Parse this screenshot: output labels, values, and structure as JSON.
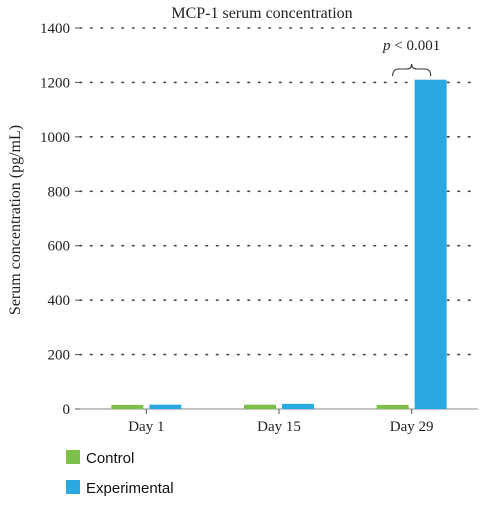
{
  "chart_data": {
    "type": "bar",
    "title": "MCP-1 serum concentration",
    "xlabel": "",
    "ylabel": "Serum concentration (pg/mL)",
    "categories": [
      "Day 1",
      "Day 15",
      "Day 29"
    ],
    "series": [
      {
        "name": "Control",
        "values": [
          15,
          16,
          15
        ],
        "color": "#7cc04a"
      },
      {
        "name": "Experimental",
        "values": [
          16,
          19,
          1210
        ],
        "color": "#2aa9e0"
      }
    ],
    "ylim": [
      0,
      1400
    ],
    "yticks": [
      "0",
      "200",
      "400",
      "600",
      "800",
      "1000",
      "1200",
      "1400"
    ],
    "grid": "horizontal-dotted",
    "legend": "bottom-left",
    "annotation": {
      "p_symbol": "p",
      "text": " < 0.001",
      "category": "Day 29"
    }
  }
}
